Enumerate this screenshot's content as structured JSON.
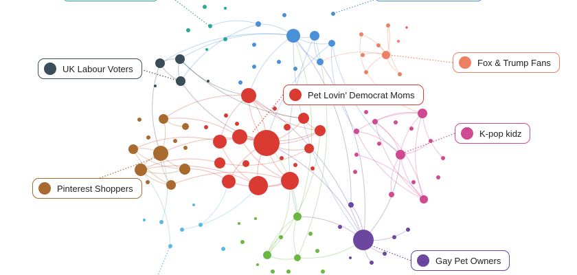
{
  "audiences": [
    {
      "key": "labour",
      "label": "UK Labour Voters",
      "color": "#3a4e5a"
    },
    {
      "key": "democrat",
      "label": "Pet Lovin’ Democrat Moms",
      "color": "#d93a32"
    },
    {
      "key": "trump",
      "label": "Fox & Trump Fans",
      "color": "#ec8062"
    },
    {
      "key": "kpop",
      "label": "K-pop kidz",
      "color": "#d04a92"
    },
    {
      "key": "pinterest",
      "label": "Pinterest Shoppers",
      "color": "#a86a2e"
    },
    {
      "key": "gaypet",
      "label": "Gay Pet Owners",
      "color": "#6b47a0"
    },
    {
      "key": "teal",
      "label": "",
      "color": "#2aa89a"
    },
    {
      "key": "blue",
      "label": "",
      "color": "#4a90d9"
    },
    {
      "key": "green",
      "label": "",
      "color": "#6ab844"
    },
    {
      "key": "lightblue",
      "label": "",
      "color": "#5ab8e8"
    }
  ]
}
